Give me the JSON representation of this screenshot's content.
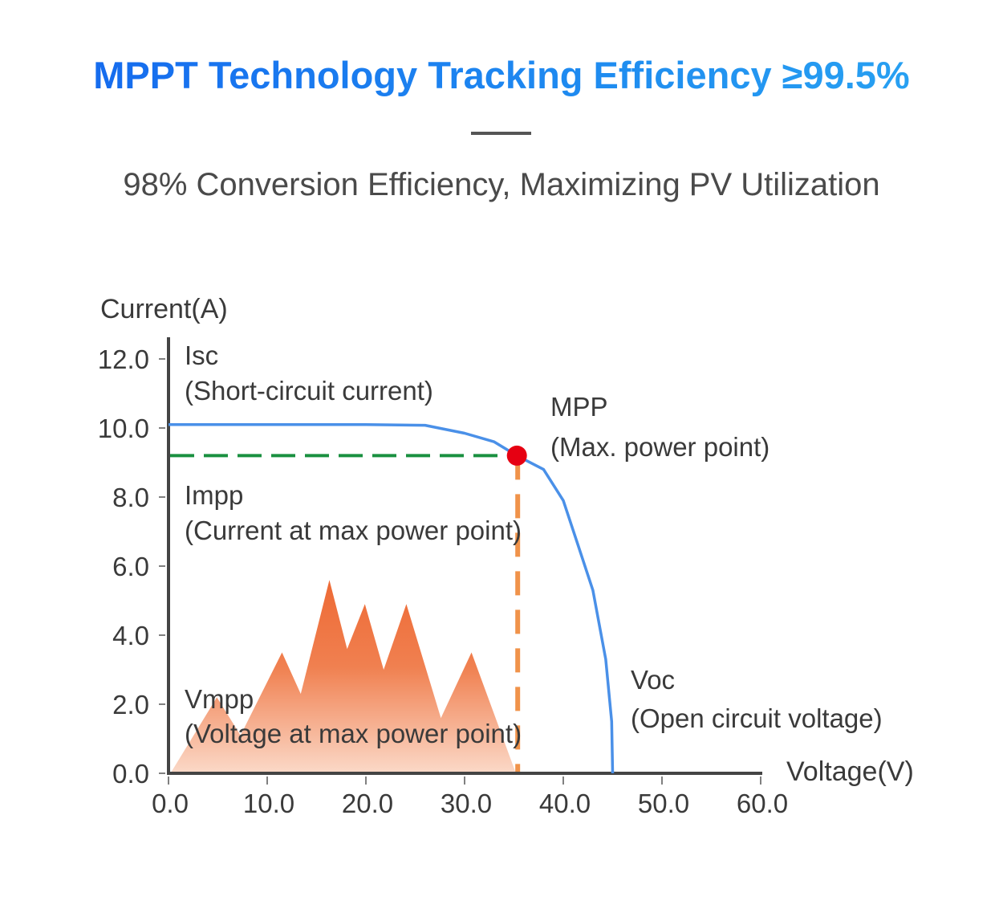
{
  "title": "MPPT Technology Tracking Efficiency ≥99.5%",
  "subtitle": "98% Conversion Efficiency, Maximizing PV Utilization",
  "chart_data": {
    "type": "line",
    "xlabel": "Voltage(V)",
    "ylabel": "Current(A)",
    "xlim": [
      0,
      60
    ],
    "ylim": [
      0,
      12
    ],
    "x_ticks": [
      "0.0",
      "10.0",
      "20.0",
      "30.0",
      "40.0",
      "50.0",
      "60.0"
    ],
    "y_ticks": [
      "0.0",
      "2.0",
      "4.0",
      "6.0",
      "8.0",
      "10.0",
      "12.0"
    ],
    "grid": false,
    "series": [
      {
        "type": "line",
        "color": "#4a90e8",
        "points": [
          [
            0,
            10.1
          ],
          [
            10,
            10.1
          ],
          [
            20,
            10.1
          ],
          [
            26,
            10.08
          ],
          [
            30,
            9.85
          ],
          [
            33,
            9.6
          ],
          [
            35.3,
            9.2
          ],
          [
            38,
            8.8
          ],
          [
            40,
            7.9
          ],
          [
            41.5,
            6.6
          ],
          [
            43,
            5.3
          ],
          [
            44.3,
            3.3
          ],
          [
            44.9,
            1.5
          ],
          [
            45,
            0
          ]
        ]
      },
      {
        "type": "area",
        "color": "#f07040",
        "points": [
          [
            0.2,
            0
          ],
          [
            4.9,
            2.2
          ],
          [
            7.3,
            1.1
          ],
          [
            11.5,
            3.5
          ],
          [
            13.4,
            2.3
          ],
          [
            16.3,
            5.6
          ],
          [
            18.1,
            3.6
          ],
          [
            19.9,
            4.9
          ],
          [
            21.8,
            3.0
          ],
          [
            24.1,
            4.9
          ],
          [
            27.6,
            1.6
          ],
          [
            30.7,
            3.5
          ],
          [
            35.2,
            0
          ]
        ]
      }
    ],
    "mpp": {
      "x": 35.3,
      "y": 9.2,
      "color": "#e60012"
    },
    "impp_line_color": "#1a9040",
    "vmpp_line_color": "#f0934a",
    "annotations": {
      "isc": "Isc",
      "isc_desc": "(Short-circuit current)",
      "mpp": "MPP",
      "mpp_desc": "(Max. power point)",
      "impp": "Impp",
      "impp_desc": "(Current at max power point)",
      "vmpp": "Vmpp",
      "vmpp_desc": "(Voltage at max power point)",
      "voc": "Voc",
      "voc_desc": "(Open circuit voltage)"
    }
  }
}
